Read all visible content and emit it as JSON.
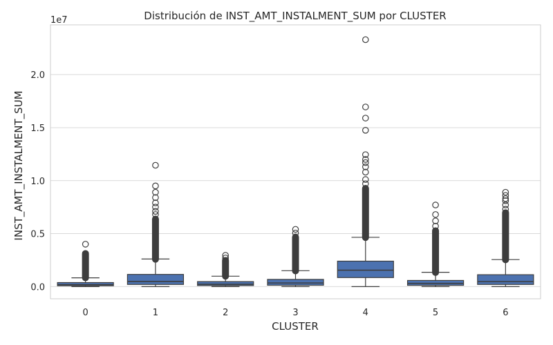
{
  "chart_data": {
    "type": "boxplot",
    "title": "Distribución de INST_AMT_INSTALMENT_SUM por CLUSTER",
    "xlabel": "CLUSTER",
    "ylabel": "INST_AMT_INSTALMENT_SUM",
    "y_multiplier_label": "1e7",
    "ylim": [
      -1150000,
      24700000
    ],
    "yticks": [
      0,
      5000000,
      10000000,
      15000000,
      20000000
    ],
    "ytick_labels": [
      "0.0",
      "0.5",
      "1.0",
      "1.5",
      "2.0"
    ],
    "grid": "horizontal",
    "colors": {
      "box": "#4c72b0",
      "edge": "#3d3d3d",
      "grid": "#d9d9d9",
      "frame": "#cccccc"
    },
    "categories": [
      "0",
      "1",
      "2",
      "3",
      "4",
      "5",
      "6"
    ],
    "boxes": [
      {
        "q1": 80000,
        "median": 180000,
        "q3": 380000,
        "whisker_low": 0,
        "whisker_high": 830000,
        "outlier_band": [
          800000,
          3150000
        ],
        "outliers": [
          4000000
        ]
      },
      {
        "q1": 200000,
        "median": 480000,
        "q3": 1150000,
        "whisker_low": 0,
        "whisker_high": 2600000,
        "outlier_band": [
          2550000,
          6400000
        ],
        "outliers": [
          6800000,
          7100000,
          7500000,
          7900000,
          8400000,
          8900000,
          9500000,
          11450000
        ]
      },
      {
        "q1": 100000,
        "median": 220000,
        "q3": 470000,
        "whisker_low": 0,
        "whisker_high": 980000,
        "outlier_band": [
          950000,
          2500000
        ],
        "outliers": [
          2700000,
          2950000
        ]
      },
      {
        "q1": 130000,
        "median": 340000,
        "q3": 680000,
        "whisker_low": 0,
        "whisker_high": 1500000,
        "outlier_band": [
          1450000,
          4700000
        ],
        "outliers": [
          5050000,
          5400000
        ]
      },
      {
        "q1": 850000,
        "median": 1550000,
        "q3": 2400000,
        "whisker_low": 0,
        "whisker_high": 4650000,
        "outlier_band": [
          4600000,
          9300000
        ],
        "outliers": [
          9700000,
          10100000,
          10800000,
          11300000,
          11700000,
          12000000,
          12450000,
          14750000,
          15900000,
          16950000,
          23300000
        ]
      },
      {
        "q1": 120000,
        "median": 300000,
        "q3": 580000,
        "whisker_low": 0,
        "whisker_high": 1350000,
        "outlier_band": [
          1300000,
          5300000
        ],
        "outliers": [
          5700000,
          6200000,
          6800000,
          7700000
        ]
      },
      {
        "q1": 200000,
        "median": 470000,
        "q3": 1120000,
        "whisker_low": 0,
        "whisker_high": 2550000,
        "outlier_band": [
          2500000,
          7000000
        ],
        "outliers": [
          7300000,
          7700000,
          8100000,
          8300000,
          8600000,
          8900000
        ]
      }
    ]
  }
}
